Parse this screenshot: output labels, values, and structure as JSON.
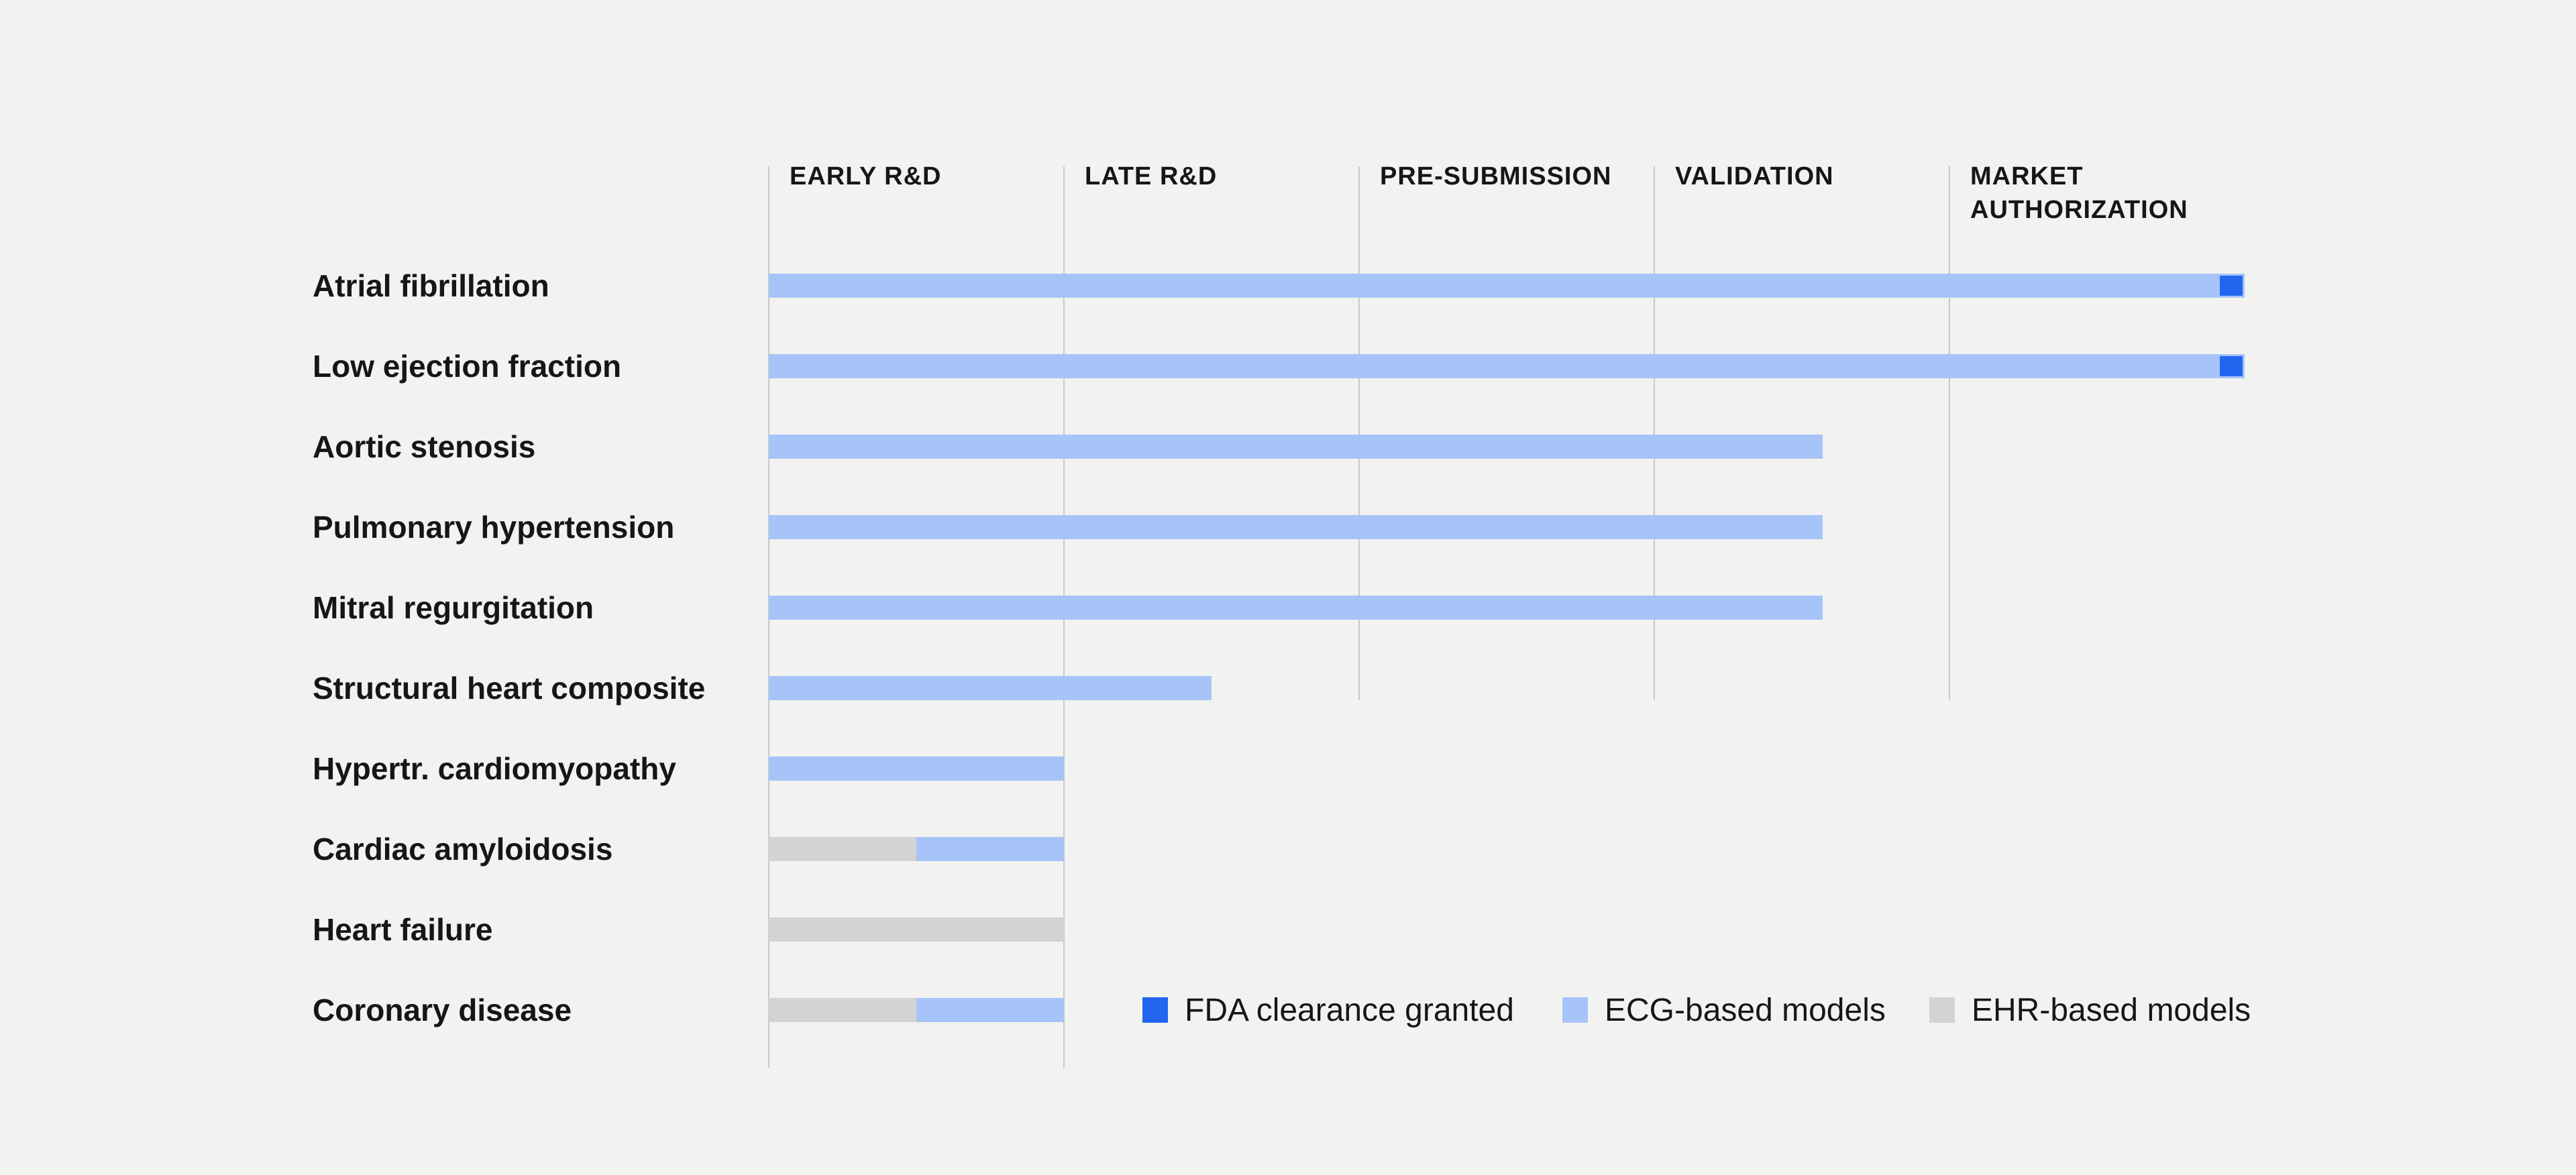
{
  "chart_data": {
    "type": "bar",
    "variant": "horizontal-pipeline-gantt",
    "title": "",
    "stages": [
      "EARLY R&D",
      "LATE R&D",
      "PRE-SUBMISSION",
      "VALIDATION",
      "MARKET AUTHORIZATION"
    ],
    "stage_axis": {
      "units_total": 5,
      "grid": "vertical-lines-at-stage-starts"
    },
    "rows": [
      {
        "label": "Atrial fibrillation",
        "fda_cleared": true,
        "segments": [
          {
            "kind": "ecg",
            "start": 0,
            "end": 5
          }
        ]
      },
      {
        "label": "Low ejection fraction",
        "fda_cleared": true,
        "segments": [
          {
            "kind": "ecg",
            "start": 0,
            "end": 5
          }
        ]
      },
      {
        "label": "Aortic stenosis",
        "fda_cleared": false,
        "segments": [
          {
            "kind": "ecg",
            "start": 0,
            "end": 3.57
          }
        ]
      },
      {
        "label": "Pulmonary hypertension",
        "fda_cleared": false,
        "segments": [
          {
            "kind": "ecg",
            "start": 0,
            "end": 3.57
          }
        ]
      },
      {
        "label": "Mitral regurgitation",
        "fda_cleared": false,
        "segments": [
          {
            "kind": "ecg",
            "start": 0,
            "end": 3.57
          }
        ]
      },
      {
        "label": "Structural heart composite",
        "fda_cleared": false,
        "segments": [
          {
            "kind": "ecg",
            "start": 0,
            "end": 1.5
          }
        ]
      },
      {
        "label": "Hypertr. cardiomyopathy",
        "fda_cleared": false,
        "segments": [
          {
            "kind": "ecg",
            "start": 0,
            "end": 1
          }
        ]
      },
      {
        "label": "Cardiac amyloidosis",
        "fda_cleared": false,
        "segments": [
          {
            "kind": "ehr",
            "start": 0,
            "end": 0.5
          },
          {
            "kind": "ecg",
            "start": 0.5,
            "end": 1
          }
        ]
      },
      {
        "label": "Heart failure",
        "fda_cleared": false,
        "segments": [
          {
            "kind": "ehr",
            "start": 0,
            "end": 1
          }
        ]
      },
      {
        "label": "Coronary disease",
        "fda_cleared": false,
        "segments": [
          {
            "kind": "ehr",
            "start": 0,
            "end": 0.5
          },
          {
            "kind": "ecg",
            "start": 0.5,
            "end": 1
          }
        ]
      }
    ],
    "legend": [
      {
        "kind": "fda",
        "label": "FDA clearance granted"
      },
      {
        "kind": "ecg",
        "label": "ECG-based models"
      },
      {
        "kind": "ehr",
        "label": "EHR-based models"
      }
    ],
    "legend_position": "bottom-right-inline-with-last-row",
    "colors": {
      "fda": "#2266ef",
      "ecg": "#a7c4f8",
      "ehr": "#d3d3d2",
      "text": "#161616",
      "gridline": "#c9c9c9",
      "background": "#f2f2f1"
    }
  }
}
